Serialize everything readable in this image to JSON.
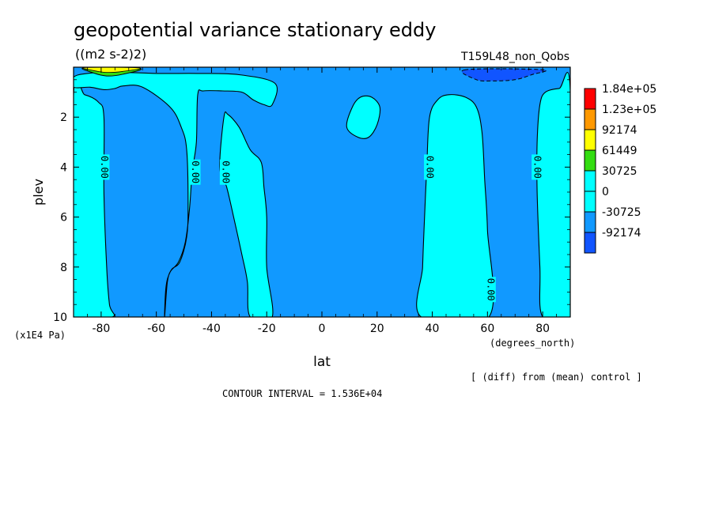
{
  "chart_data": {
    "type": "filled-contour",
    "title": "geopotential variance stationary eddy",
    "units": "((m2 s-2)2)",
    "run_label": "T159L48_non_Qobs",
    "xlabel": "lat",
    "x_units": "(degrees_north)",
    "ylabel": "plev",
    "y_units": "(x1E4 Pa)",
    "xlim": [
      -90,
      90
    ],
    "ylim": [
      10,
      0
    ],
    "x_ticks": [
      -80,
      -60,
      -40,
      -20,
      0,
      20,
      40,
      60,
      80
    ],
    "x_tick_labels": [
      "-80",
      "-60",
      "-40",
      "-20",
      "0",
      "20",
      "40",
      "60",
      "80"
    ],
    "y_ticks": [
      2,
      4,
      6,
      8,
      10
    ],
    "y_tick_labels": [
      "2",
      "4",
      "6",
      "8",
      "10"
    ],
    "contour_interval_text": "CONTOUR INTERVAL = 1.536E+04",
    "comparison_note": "[ (diff) from (mean) control ]",
    "colorbar": {
      "levels": [
        "1.84e+05",
        "1.23e+05",
        "92174",
        "61449",
        "30725",
        "0",
        "-30725",
        "-92174"
      ],
      "colors": [
        "#ff0000",
        "#ff9900",
        "#ffff00",
        "#33dd11",
        "#00ffff",
        "#00ffff",
        "#1199ff",
        "#1155ff"
      ]
    },
    "contour_labels": [
      {
        "text": "0.00",
        "lat": -79,
        "plev": 4.0
      },
      {
        "text": "0.00",
        "lat": -46,
        "plev": 4.2
      },
      {
        "text": "0.00",
        "lat": -35,
        "plev": 4.2
      },
      {
        "text": "0.00",
        "lat": 39,
        "plev": 4.0
      },
      {
        "text": "0.00",
        "lat": 78,
        "plev": 4.0
      },
      {
        "text": "0.00",
        "lat": 61,
        "plev": 8.9
      }
    ],
    "field_colors": {
      "positive": "#00ffff",
      "negative": "#1199ff"
    },
    "positive_regions": [
      {
        "name": "south-polar-band",
        "points": [
          [
            -90,
            1.1
          ],
          [
            -86,
            1.1
          ],
          [
            -81,
            1.4
          ],
          [
            -79,
            2.0
          ],
          [
            -79,
            5.0
          ],
          [
            -78,
            8.0
          ],
          [
            -77,
            9.5
          ],
          [
            -76,
            10
          ],
          [
            -90,
            10
          ]
        ]
      },
      {
        "name": "southern-midlat-band",
        "points": [
          [
            -57,
            10
          ],
          [
            -56.5,
            8.8
          ],
          [
            -55,
            8.2
          ],
          [
            -52,
            7.8
          ],
          [
            -49.5,
            7.0
          ],
          [
            -48,
            5.7
          ],
          [
            -47,
            4.2
          ],
          [
            -45.5,
            3.0
          ],
          [
            -45,
            1.1
          ],
          [
            -43,
            0.95
          ],
          [
            -36,
            0.95
          ],
          [
            -29,
            1.0
          ],
          [
            -25,
            1.3
          ],
          [
            -21,
            1.5
          ],
          [
            -18,
            1.5
          ],
          [
            -17,
            0.65
          ],
          [
            -30,
            0.3
          ],
          [
            -45,
            0.25
          ],
          [
            -60,
            0.25
          ],
          [
            -75,
            0.2
          ],
          [
            -85,
            0.25
          ],
          [
            -90,
            0.4
          ],
          [
            -90,
            0.8
          ],
          [
            -84,
            0.8
          ],
          [
            -79,
            0.9
          ],
          [
            -75,
            0.85
          ],
          [
            -72,
            0.75
          ],
          [
            -65,
            0.8
          ],
          [
            -55,
            1.6
          ],
          [
            -51,
            2.4
          ],
          [
            -49,
            3.3
          ],
          [
            -48.5,
            5.5
          ],
          [
            -49,
            6.8
          ],
          [
            -51.5,
            7.8
          ],
          [
            -54.5,
            8.1
          ],
          [
            -56,
            8.6
          ]
        ]
      },
      {
        "name": "subtropical-tongue",
        "points": [
          [
            -37,
            4.0
          ],
          [
            -35.5,
            2.0
          ],
          [
            -34,
            1.9
          ],
          [
            -30,
            2.4
          ],
          [
            -26,
            3.3
          ],
          [
            -22,
            3.8
          ],
          [
            -21,
            4.8
          ],
          [
            -20,
            6.0
          ],
          [
            -20,
            8.0
          ],
          [
            -18,
            10
          ],
          [
            -26,
            10
          ],
          [
            -27,
            8.6
          ],
          [
            -29,
            7.5
          ],
          [
            -32,
            6.0
          ],
          [
            -34.5,
            4.8
          ]
        ]
      },
      {
        "name": "equatorial-patch",
        "points": [
          [
            9,
            2.4
          ],
          [
            11,
            1.6
          ],
          [
            14,
            1.2
          ],
          [
            18,
            1.2
          ],
          [
            21,
            1.6
          ],
          [
            20,
            2.3
          ],
          [
            17,
            2.8
          ],
          [
            13,
            2.8
          ]
        ]
      },
      {
        "name": "northern-midlat-band",
        "points": [
          [
            36,
            10
          ],
          [
            36.5,
            8.0
          ],
          [
            37,
            6.5
          ],
          [
            38,
            4.0
          ],
          [
            39,
            2.0
          ],
          [
            42,
            1.3
          ],
          [
            46,
            1.1
          ],
          [
            52,
            1.2
          ],
          [
            56,
            1.6
          ],
          [
            58,
            2.6
          ],
          [
            59,
            4.5
          ],
          [
            60,
            6.5
          ],
          [
            60.5,
            10
          ]
        ]
      },
      {
        "name": "north-polar-band",
        "points": [
          [
            80,
            10
          ],
          [
            79,
            8.0
          ],
          [
            78,
            5.0
          ],
          [
            78,
            3.0
          ],
          [
            79,
            1.5
          ],
          [
            81,
            1.0
          ],
          [
            86,
            0.85
          ],
          [
            90,
            0.9
          ],
          [
            90,
            10
          ]
        ]
      }
    ],
    "negative_features": [
      {
        "name": "north-polar-upper-low",
        "points": [
          [
            52,
            0.1
          ],
          [
            56,
            0.5
          ],
          [
            62,
            0.55
          ],
          [
            70,
            0.5
          ],
          [
            76,
            0.3
          ],
          [
            80,
            0.1
          ]
        ]
      }
    ],
    "strong_positive_features": [
      {
        "name": "south-polar-upper-maximum",
        "points": [
          [
            -86,
            0.02
          ],
          [
            -83,
            0.22
          ],
          [
            -78,
            0.35
          ],
          [
            -72,
            0.28
          ],
          [
            -66,
            0.05
          ]
        ]
      }
    ]
  }
}
